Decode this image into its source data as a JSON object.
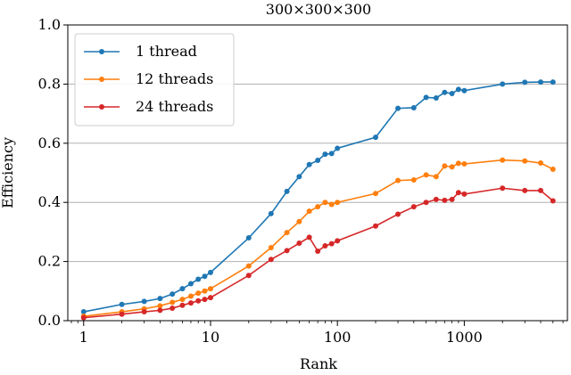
{
  "chart_data": {
    "type": "line",
    "title": "300×300×300",
    "xlabel": "Rank",
    "ylabel": "Efficiency",
    "xscale": "log",
    "xlim": [
      0.75,
      6500
    ],
    "ylim": [
      0.0,
      1.0
    ],
    "grid": "horizontal",
    "legend_position": "top-left",
    "x_ticks": [
      1,
      10,
      100,
      1000
    ],
    "x_tick_labels": [
      "1",
      "10",
      "100",
      "1000"
    ],
    "y_ticks": [
      0.0,
      0.2,
      0.4,
      0.6,
      0.8,
      1.0
    ],
    "y_tick_labels": [
      "0.0",
      "0.2",
      "0.4",
      "0.6",
      "0.8",
      "1.0"
    ],
    "series": [
      {
        "name": "1 thread",
        "color": "#1f77b4",
        "x": [
          1,
          2,
          3,
          4,
          5,
          6,
          7,
          8,
          9,
          10,
          20,
          30,
          40,
          50,
          60,
          70,
          80,
          90,
          100,
          200,
          300,
          400,
          500,
          600,
          700,
          800,
          900,
          1000,
          2000,
          3000,
          4000,
          5000
        ],
        "y": [
          0.03,
          0.055,
          0.065,
          0.075,
          0.09,
          0.108,
          0.125,
          0.14,
          0.15,
          0.163,
          0.28,
          0.362,
          0.437,
          0.487,
          0.528,
          0.542,
          0.563,
          0.565,
          0.583,
          0.62,
          0.718,
          0.72,
          0.755,
          0.753,
          0.772,
          0.768,
          0.782,
          0.778,
          0.8,
          0.806,
          0.807,
          0.807
        ]
      },
      {
        "name": "12 threads",
        "color": "#ff7f0e",
        "x": [
          1,
          2,
          3,
          4,
          5,
          6,
          7,
          8,
          9,
          10,
          20,
          30,
          40,
          50,
          60,
          70,
          80,
          90,
          100,
          200,
          300,
          400,
          500,
          600,
          700,
          800,
          900,
          1000,
          2000,
          3000,
          4000,
          5000
        ],
        "y": [
          0.015,
          0.03,
          0.04,
          0.05,
          0.062,
          0.072,
          0.083,
          0.093,
          0.1,
          0.108,
          0.185,
          0.247,
          0.298,
          0.335,
          0.37,
          0.385,
          0.4,
          0.393,
          0.4,
          0.43,
          0.474,
          0.476,
          0.493,
          0.487,
          0.523,
          0.52,
          0.532,
          0.53,
          0.543,
          0.54,
          0.533,
          0.512
        ]
      },
      {
        "name": "24 threads",
        "color": "#d62728",
        "x": [
          1,
          2,
          3,
          4,
          5,
          6,
          7,
          8,
          9,
          10,
          20,
          30,
          40,
          50,
          60,
          70,
          80,
          90,
          100,
          200,
          300,
          400,
          500,
          600,
          700,
          800,
          900,
          1000,
          2000,
          3000,
          4000,
          5000
        ],
        "y": [
          0.01,
          0.022,
          0.03,
          0.035,
          0.042,
          0.052,
          0.06,
          0.067,
          0.072,
          0.078,
          0.153,
          0.207,
          0.237,
          0.262,
          0.282,
          0.235,
          0.253,
          0.26,
          0.27,
          0.32,
          0.36,
          0.385,
          0.4,
          0.41,
          0.407,
          0.41,
          0.433,
          0.428,
          0.448,
          0.44,
          0.44,
          0.405
        ]
      }
    ]
  }
}
